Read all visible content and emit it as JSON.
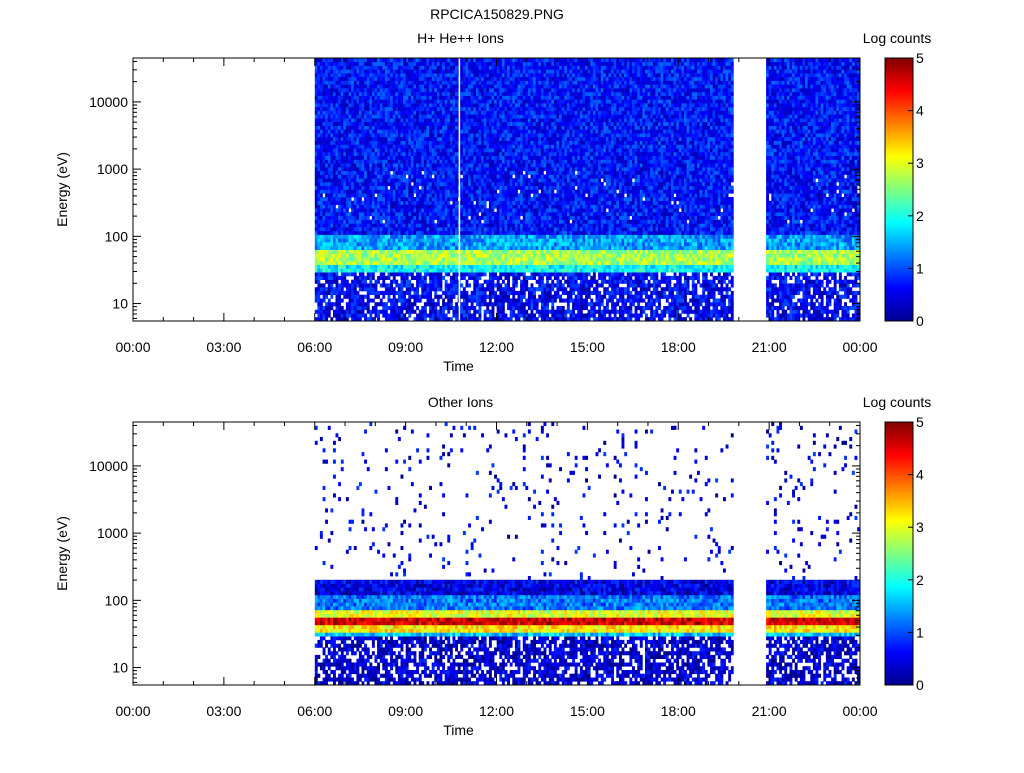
{
  "figure_title": "RPCICA150829.PNG",
  "chart_data": [
    {
      "type": "heatmap",
      "title": "H+ He++ Ions",
      "xlabel": "Time",
      "ylabel": "Energy (eV)",
      "x_ticks": [
        "00:00",
        "03:00",
        "06:00",
        "09:00",
        "12:00",
        "15:00",
        "18:00",
        "21:00",
        "00:00"
      ],
      "x_range_hours": [
        0,
        24
      ],
      "y_scale": "log",
      "y_ticks": [
        10,
        100,
        1000,
        10000
      ],
      "y_tick_labels": [
        "10",
        "100",
        "1000",
        "10000"
      ],
      "ylim": [
        5.5,
        45000
      ],
      "colorbar": {
        "label": "Log counts",
        "range": [
          0,
          5
        ],
        "ticks": [
          "0",
          "1",
          "2",
          "3",
          "4",
          "5"
        ]
      },
      "data_intervals_hours": [
        [
          6.0,
          19.8
        ],
        [
          20.9,
          23.95
        ]
      ],
      "data_gap_lines_hours": [
        10.75
      ],
      "bands": [
        {
          "energy_ev": [
            40,
            60
          ],
          "level": 2.7
        },
        {
          "energy_ev": [
            30,
            40
          ],
          "level": 1.9
        },
        {
          "energy_ev": [
            5.5,
            30
          ],
          "level": 0.6
        },
        {
          "energy_ev": [
            60,
            100
          ],
          "level": 1.4
        },
        {
          "energy_ev": [
            100,
            45000
          ],
          "level": 0.7
        }
      ],
      "background_fill": "dense"
    },
    {
      "type": "heatmap",
      "title": "Other Ions",
      "xlabel": "Time",
      "ylabel": "Energy (eV)",
      "x_ticks": [
        "00:00",
        "03:00",
        "06:00",
        "09:00",
        "12:00",
        "15:00",
        "18:00",
        "21:00",
        "00:00"
      ],
      "x_range_hours": [
        0,
        24
      ],
      "y_scale": "log",
      "y_ticks": [
        10,
        100,
        1000,
        10000
      ],
      "y_tick_labels": [
        "10",
        "100",
        "1000",
        "10000"
      ],
      "ylim": [
        5.5,
        45000
      ],
      "colorbar": {
        "label": "Log counts",
        "range": [
          0,
          5
        ],
        "ticks": [
          "0",
          "1",
          "2",
          "3",
          "4",
          "5"
        ]
      },
      "data_intervals_hours": [
        [
          6.0,
          19.8
        ],
        [
          20.9,
          23.95
        ]
      ],
      "data_gap_lines_hours": [],
      "bands": [
        {
          "energy_ev": [
            42,
            58
          ],
          "level": 4.6
        },
        {
          "energy_ev": [
            35,
            42
          ],
          "level": 3.2
        },
        {
          "energy_ev": [
            58,
            70
          ],
          "level": 3.0
        },
        {
          "energy_ev": [
            28,
            35
          ],
          "level": 1.6
        },
        {
          "energy_ev": [
            70,
            120
          ],
          "level": 1.2
        },
        {
          "energy_ev": [
            120,
            200
          ],
          "level": 0.5
        },
        {
          "energy_ev": [
            5.5,
            28
          ],
          "level": 0.4
        }
      ],
      "background_fill": "sparse"
    }
  ]
}
